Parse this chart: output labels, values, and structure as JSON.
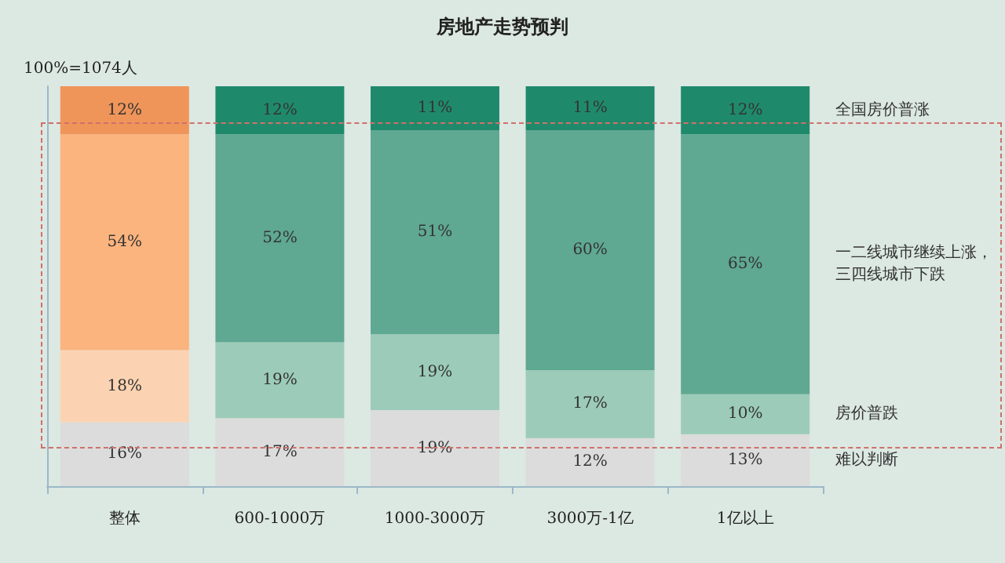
{
  "chart_data": {
    "type": "bar",
    "stacked": true,
    "title": "房地产走势预判",
    "annotations": [
      "100%=1074人"
    ],
    "categories": [
      "整体",
      "600-1000万",
      "1000-3000万",
      "3000万-1亿",
      "1亿以上"
    ],
    "series": [
      {
        "name": "难以判断",
        "colors": [
          "#dcdcdc",
          "#dcdcdc",
          "#dcdcdc",
          "#dcdcdc",
          "#dcdcdc"
        ],
        "values": [
          16,
          17,
          19,
          12,
          13
        ],
        "value_labels": [
          "16%",
          "17%",
          "19%",
          "12%",
          "13%"
        ]
      },
      {
        "name": "房价普跌",
        "colors": [
          "#fcd3b2",
          "#9ccbb9",
          "#9ccbb9",
          "#9ccbb9",
          "#9ccbb9"
        ],
        "values": [
          18,
          19,
          19,
          17,
          10
        ],
        "value_labels": [
          "18%",
          "19%",
          "19%",
          "17%",
          "10%"
        ]
      },
      {
        "name": "一二线城市继续上涨，三四线城市下跌",
        "colors": [
          "#fbb47e",
          "#5fa891",
          "#5fa891",
          "#5fa891",
          "#5fa891"
        ],
        "values": [
          54,
          52,
          51,
          60,
          65
        ],
        "value_labels": [
          "54%",
          "52%",
          "51%",
          "60%",
          "65%"
        ]
      },
      {
        "name": "全国房价普涨",
        "colors": [
          "#f0955a",
          "#1f8a6b",
          "#1f8a6b",
          "#1f8a6b",
          "#1f8a6b"
        ],
        "values": [
          12,
          12,
          11,
          11,
          12
        ],
        "value_labels": [
          "12%",
          "12%",
          "11%",
          "11%",
          "12%"
        ]
      }
    ],
    "tick_labels": "x",
    "grid": false,
    "legend": false
  }
}
